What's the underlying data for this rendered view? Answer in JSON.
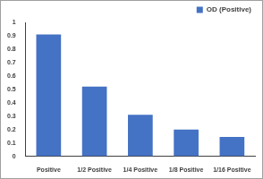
{
  "chart_data": {
    "type": "bar",
    "categories": [
      "Positive",
      "1/2 Positive",
      "1/4 Positive",
      "1/8 Positive",
      "1/16 Positive"
    ],
    "series": [
      {
        "name": "OD (Positive)",
        "color": "#4472c4",
        "values": [
          0.91,
          0.52,
          0.31,
          0.2,
          0.145
        ]
      }
    ],
    "ylim": [
      0,
      1
    ],
    "yticks": [
      0,
      0.1,
      0.2,
      0.3,
      0.4,
      0.5,
      0.6,
      0.7,
      0.8,
      0.9,
      1
    ],
    "grid": false,
    "legend": "upper right"
  }
}
